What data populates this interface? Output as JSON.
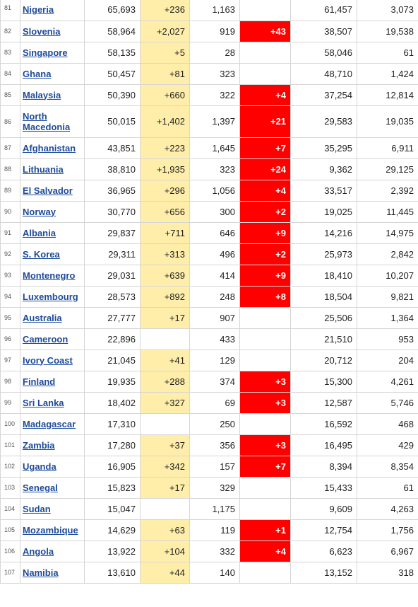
{
  "rows": [
    {
      "rank": "81",
      "country": "Nigeria",
      "cases": "65,693",
      "new_cases": "+236",
      "deaths": "1,163",
      "new_deaths": "",
      "recovered": "61,457",
      "active": "3,073"
    },
    {
      "rank": "82",
      "country": "Slovenia",
      "cases": "58,964",
      "new_cases": "+2,027",
      "deaths": "919",
      "new_deaths": "+43",
      "recovered": "38,507",
      "active": "19,538"
    },
    {
      "rank": "83",
      "country": "Singapore",
      "cases": "58,135",
      "new_cases": "+5",
      "deaths": "28",
      "new_deaths": "",
      "recovered": "58,046",
      "active": "61"
    },
    {
      "rank": "84",
      "country": "Ghana",
      "cases": "50,457",
      "new_cases": "+81",
      "deaths": "323",
      "new_deaths": "",
      "recovered": "48,710",
      "active": "1,424"
    },
    {
      "rank": "85",
      "country": "Malaysia",
      "cases": "50,390",
      "new_cases": "+660",
      "deaths": "322",
      "new_deaths": "+4",
      "recovered": "37,254",
      "active": "12,814"
    },
    {
      "rank": "86",
      "country": "North Macedonia",
      "cases": "50,015",
      "new_cases": "+1,402",
      "deaths": "1,397",
      "new_deaths": "+21",
      "recovered": "29,583",
      "active": "19,035"
    },
    {
      "rank": "87",
      "country": "Afghanistan",
      "cases": "43,851",
      "new_cases": "+223",
      "deaths": "1,645",
      "new_deaths": "+7",
      "recovered": "35,295",
      "active": "6,911"
    },
    {
      "rank": "88",
      "country": "Lithuania",
      "cases": "38,810",
      "new_cases": "+1,935",
      "deaths": "323",
      "new_deaths": "+24",
      "recovered": "9,362",
      "active": "29,125"
    },
    {
      "rank": "89",
      "country": "El Salvador",
      "cases": "36,965",
      "new_cases": "+296",
      "deaths": "1,056",
      "new_deaths": "+4",
      "recovered": "33,517",
      "active": "2,392"
    },
    {
      "rank": "90",
      "country": "Norway",
      "cases": "30,770",
      "new_cases": "+656",
      "deaths": "300",
      "new_deaths": "+2",
      "recovered": "19,025",
      "active": "11,445"
    },
    {
      "rank": "91",
      "country": "Albania",
      "cases": "29,837",
      "new_cases": "+711",
      "deaths": "646",
      "new_deaths": "+9",
      "recovered": "14,216",
      "active": "14,975"
    },
    {
      "rank": "92",
      "country": "S. Korea",
      "cases": "29,311",
      "new_cases": "+313",
      "deaths": "496",
      "new_deaths": "+2",
      "recovered": "25,973",
      "active": "2,842"
    },
    {
      "rank": "93",
      "country": "Montenegro",
      "cases": "29,031",
      "new_cases": "+639",
      "deaths": "414",
      "new_deaths": "+9",
      "recovered": "18,410",
      "active": "10,207"
    },
    {
      "rank": "94",
      "country": "Luxembourg",
      "cases": "28,573",
      "new_cases": "+892",
      "deaths": "248",
      "new_deaths": "+8",
      "recovered": "18,504",
      "active": "9,821"
    },
    {
      "rank": "95",
      "country": "Australia",
      "cases": "27,777",
      "new_cases": "+17",
      "deaths": "907",
      "new_deaths": "",
      "recovered": "25,506",
      "active": "1,364"
    },
    {
      "rank": "96",
      "country": "Cameroon",
      "cases": "22,896",
      "new_cases": "",
      "deaths": "433",
      "new_deaths": "",
      "recovered": "21,510",
      "active": "953"
    },
    {
      "rank": "97",
      "country": "Ivory Coast",
      "cases": "21,045",
      "new_cases": "+41",
      "deaths": "129",
      "new_deaths": "",
      "recovered": "20,712",
      "active": "204"
    },
    {
      "rank": "98",
      "country": "Finland",
      "cases": "19,935",
      "new_cases": "+288",
      "deaths": "374",
      "new_deaths": "+3",
      "recovered": "15,300",
      "active": "4,261"
    },
    {
      "rank": "99",
      "country": "Sri Lanka",
      "cases": "18,402",
      "new_cases": "+327",
      "deaths": "69",
      "new_deaths": "+3",
      "recovered": "12,587",
      "active": "5,746"
    },
    {
      "rank": "100",
      "country": "Madagascar",
      "cases": "17,310",
      "new_cases": "",
      "deaths": "250",
      "new_deaths": "",
      "recovered": "16,592",
      "active": "468"
    },
    {
      "rank": "101",
      "country": "Zambia",
      "cases": "17,280",
      "new_cases": "+37",
      "deaths": "356",
      "new_deaths": "+3",
      "recovered": "16,495",
      "active": "429"
    },
    {
      "rank": "102",
      "country": "Uganda",
      "cases": "16,905",
      "new_cases": "+342",
      "deaths": "157",
      "new_deaths": "+7",
      "recovered": "8,394",
      "active": "8,354"
    },
    {
      "rank": "103",
      "country": "Senegal",
      "cases": "15,823",
      "new_cases": "+17",
      "deaths": "329",
      "new_deaths": "",
      "recovered": "15,433",
      "active": "61"
    },
    {
      "rank": "104",
      "country": "Sudan",
      "cases": "15,047",
      "new_cases": "",
      "deaths": "1,175",
      "new_deaths": "",
      "recovered": "9,609",
      "active": "4,263"
    },
    {
      "rank": "105",
      "country": "Mozambique",
      "cases": "14,629",
      "new_cases": "+63",
      "deaths": "119",
      "new_deaths": "+1",
      "recovered": "12,754",
      "active": "1,756"
    },
    {
      "rank": "106",
      "country": "Angola",
      "cases": "13,922",
      "new_cases": "+104",
      "deaths": "332",
      "new_deaths": "+4",
      "recovered": "6,623",
      "active": "6,967"
    },
    {
      "rank": "107",
      "country": "Namibia",
      "cases": "13,610",
      "new_cases": "+44",
      "deaths": "140",
      "new_deaths": "",
      "recovered": "13,152",
      "active": "318"
    }
  ]
}
